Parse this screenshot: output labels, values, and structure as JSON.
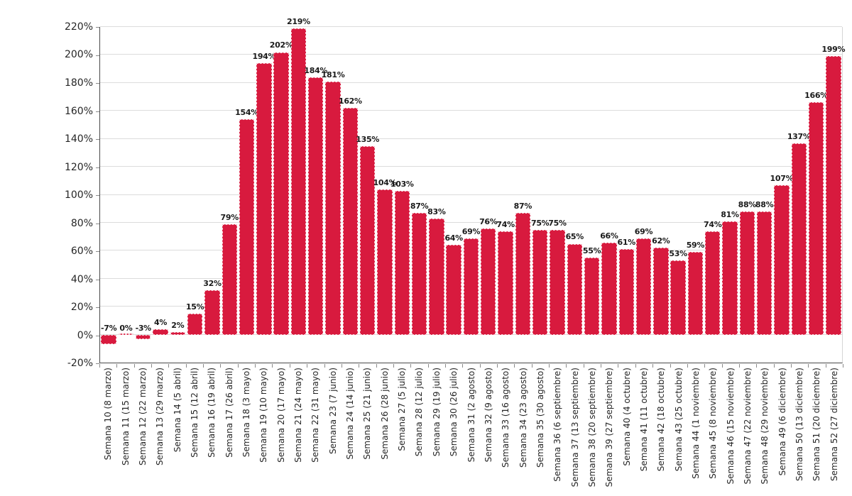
{
  "chart_data": {
    "type": "bar",
    "title": "",
    "xlabel": "",
    "ylabel": "",
    "value_suffix": "%",
    "legend": "none",
    "grid": true,
    "categories": [
      "Semana 10 (8 marzo)",
      "Semana 11 (15 marzo)",
      "Semana 12 (22 marzo)",
      "Semana 13 (29 marzo)",
      "Semana 14 (5 abril)",
      "Semana 15 (12 abril)",
      "Semana 16 (19 abril)",
      "Semana 17 (26 abril)",
      "Semana 18 (3 mayo)",
      "Semana 19 (10 mayo)",
      "Semana 20 (17 mayo)",
      "Semana 21 (24 mayo)",
      "Semana 22 (31 mayo)",
      "Semana 23 (7 junio)",
      "Semana 24 (14 junio)",
      "Semana 25 (21 junio)",
      "Semana 26 (28 junio)",
      "Semana 27 (5 julio)",
      "Semana 28 (12 julio)",
      "Semana 29 (19 julio)",
      "Semana 30 (26 julio)",
      "Semana 31 (2 agosto)",
      "Semana 32 (9 agosto)",
      "Semana 33 (16 agosto)",
      "Semana 34 (23 agosto)",
      "Semana 35 (30 agosto)",
      "Semana 36 (6 septiembre)",
      "Semana 37 (13 septiembre)",
      "Semana 38 (20 septiembre)",
      "Semana 39 (27 septiembre)",
      "Semana 40 (4 octubre)",
      "Semana 41 (11 octubre)",
      "Semana 42 (18 octubre)",
      "Semana 43 (25 octubre)",
      "Semana 44 (1 noviembre)",
      "Semana 45 (8 noviembre)",
      "Semana 46 (15 noviembre)",
      "Semana 47 (22 noviembre)",
      "Semana 48 (29 noviembre)",
      "Semana 49 (6 diciembre)",
      "Semana 50 (13 diciembre)",
      "Semana 51 (20 diciembre)",
      "Semana 52 (27 diciembre)"
    ],
    "values": [
      -7,
      0,
      -3,
      4,
      2,
      15,
      32,
      79,
      154,
      194,
      202,
      219,
      184,
      181,
      162,
      135,
      104,
      103,
      87,
      83,
      64,
      69,
      76,
      74,
      87,
      75,
      75,
      65,
      55,
      66,
      61,
      69,
      62,
      53,
      59,
      74,
      81,
      88,
      88,
      107,
      137,
      166,
      199
    ],
    "value_labels": [
      "-7%",
      "0%",
      "-3%",
      "4%",
      "2%",
      "15%",
      "32%",
      "79%",
      "154%",
      "194%",
      "202%",
      "219%",
      "184%",
      "181%",
      "162%",
      "135%",
      "104%",
      "103%",
      "87%",
      "83%",
      "64%",
      "69%",
      "76%",
      "74%",
      "87%",
      "75%",
      "75%",
      "65%",
      "55%",
      "66%",
      "61%",
      "69%",
      "62%",
      "53%",
      "59%",
      "74%",
      "81%",
      "88%",
      "88%",
      "107%",
      "137%",
      "166%",
      "199%"
    ],
    "y_axis": {
      "min": -20,
      "max": 220,
      "step": 20,
      "tick_labels": [
        "-20%",
        "0%",
        "20%",
        "40%",
        "60%",
        "80%",
        "100%",
        "120%",
        "140%",
        "160%",
        "180%",
        "200%",
        "220%"
      ]
    },
    "colors": {
      "bar": "#d81a3e",
      "bar_border": "#ffffff",
      "gridline": "#dcdcdc",
      "axis_line": "#4a4a4a",
      "plot_right_border": "#d6d6d6",
      "tick": "#8a8a8a",
      "value_label": "#1a1a1a",
      "axis_label": "#262626",
      "background": "#ffffff"
    }
  }
}
